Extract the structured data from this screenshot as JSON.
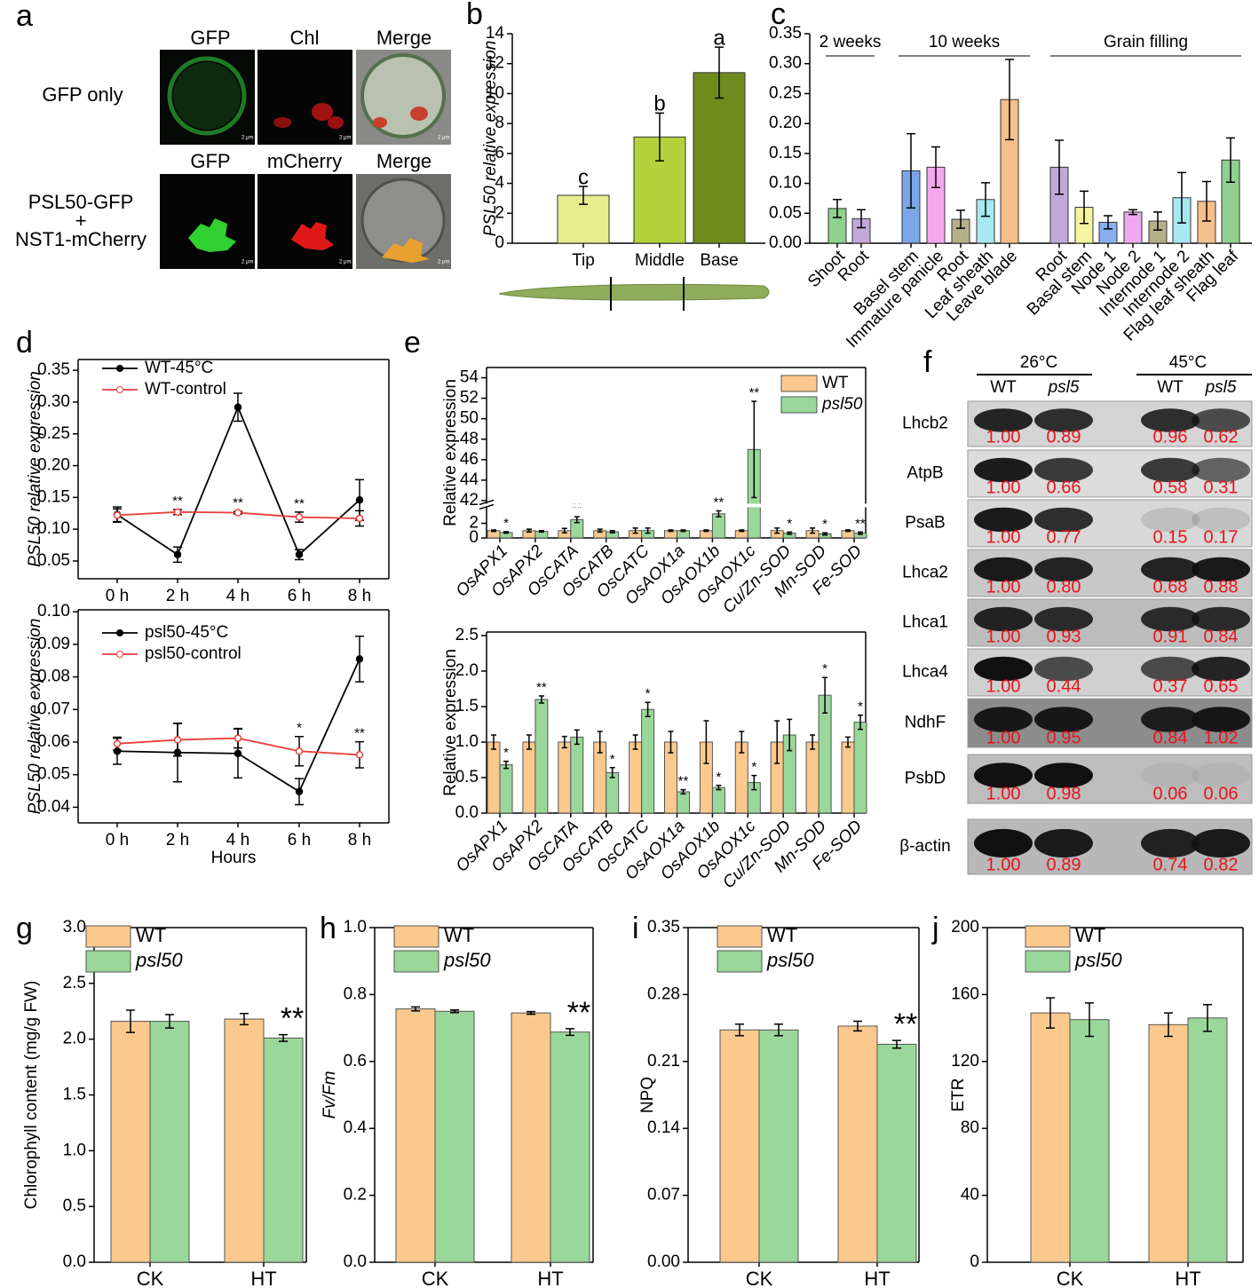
{
  "panel_a": {
    "panel": "a",
    "scale_bar": "2 μm",
    "row1": {
      "label": "GFP only",
      "columns": [
        "GFP",
        "Chl",
        "Merge"
      ]
    },
    "row2": {
      "label_lines": [
        "PSL50-GFP",
        "+",
        "NST1-mCherry"
      ],
      "columns": [
        "GFP",
        "mCherry",
        "Merge"
      ]
    }
  },
  "panel_f": {
    "panel": "f",
    "temperatures": [
      "26°C",
      "45°C"
    ],
    "genotypes": [
      "WT",
      "psl5",
      "WT",
      "psl5"
    ],
    "rows": [
      {
        "label": "Lhcb2",
        "values": [
          "1.00",
          "0.89",
          "0.96",
          "0.62"
        ]
      },
      {
        "label": "AtpB",
        "values": [
          "1.00",
          "0.66",
          "0.58",
          "0.31"
        ]
      },
      {
        "label": "PsaB",
        "values": [
          "1.00",
          "0.77",
          "0.15",
          "0.17"
        ]
      },
      {
        "label": "Lhca2",
        "values": [
          "1.00",
          "0.80",
          "0.68",
          "0.88"
        ]
      },
      {
        "label": "Lhca1",
        "values": [
          "1.00",
          "0.93",
          "0.91",
          "0.84"
        ]
      },
      {
        "label": "Lhca4",
        "values": [
          "1.00",
          "0.44",
          "0.37",
          "0.65"
        ]
      },
      {
        "label": "NdhF",
        "values": [
          "1.00",
          "0.95",
          "0.84",
          "1.02"
        ]
      },
      {
        "label": "PsbD",
        "values": [
          "1.00",
          "0.98",
          "0.06",
          "0.06"
        ]
      },
      {
        "label": "β-actin",
        "values": [
          "1.00",
          "0.89",
          "0.74",
          "0.82"
        ]
      }
    ]
  },
  "chart_data": [
    {
      "panel": "b",
      "type": "bar",
      "ylabel": "PSL50 relative expression",
      "categories": [
        "Tip",
        "Middle",
        "Base"
      ],
      "values": [
        3.2,
        7.1,
        11.4
      ],
      "errors": [
        0.6,
        1.6,
        1.7
      ],
      "annotations": [
        "c",
        "b",
        "a"
      ],
      "colors": [
        "#e8ec8c",
        "#b4d23c",
        "#6e8c1e"
      ],
      "ylim": [
        0,
        14
      ],
      "yticks": [
        0,
        2,
        4,
        6,
        8,
        10,
        12,
        14
      ]
    },
    {
      "panel": "c",
      "type": "bar",
      "groups": [
        "2 weeks",
        "10 weeks",
        "Grain filling"
      ],
      "categories": [
        "Shoot",
        "Root",
        "Basel stem",
        "Immature panicle",
        "Root",
        "Leaf sheath",
        "Leave blade",
        "Root",
        "Basal stem",
        "Node 1",
        "Node 2",
        "Internode 1",
        "Internode 2",
        "Flag leaf sheath",
        "Flag leaf"
      ],
      "values": [
        0.058,
        0.041,
        0.121,
        0.127,
        0.04,
        0.073,
        0.24,
        0.127,
        0.06,
        0.035,
        0.052,
        0.037,
        0.076,
        0.07,
        0.139
      ],
      "errors": [
        0.015,
        0.015,
        0.062,
        0.034,
        0.015,
        0.028,
        0.067,
        0.045,
        0.027,
        0.011,
        0.004,
        0.015,
        0.042,
        0.033,
        0.037
      ],
      "colors": [
        "#8fd08f",
        "#c0a8d8",
        "#7aa6e8",
        "#f5a8f0",
        "#b5b08a",
        "#a8e8f0",
        "#f5c08a",
        "#c0a8d8",
        "#f5f5a0",
        "#8aaef0",
        "#f0a8f0",
        "#b5b08a",
        "#a8e8f0",
        "#f5c08a",
        "#8fd08f"
      ],
      "ylim": [
        0,
        0.35
      ],
      "yticks": [
        {
          "value": 0,
          "label": "0.00"
        },
        0.05,
        {
          "value": 0.1,
          "label": "0.10"
        },
        0.15,
        {
          "value": 0.2,
          "label": "0.20"
        },
        0.25,
        {
          "value": 0.3,
          "label": "0.30"
        },
        0.35
      ]
    },
    {
      "panel": "d",
      "type": "line",
      "ylabel": "PSL50 relative expression",
      "categories": [
        "0 h",
        "2 h",
        "4 h",
        "6 h",
        "8 h"
      ],
      "series": [
        {
          "name": "WT-45°C",
          "color": "#000000",
          "values": [
            0.123,
            0.06,
            0.292,
            0.06,
            0.146
          ],
          "errors": [
            0.012,
            0.012,
            0.022,
            0.008,
            0.032
          ]
        },
        {
          "name": "WT-control",
          "color": "#e8403a",
          "values": [
            0.122,
            0.127,
            0.126,
            0.119,
            0.117
          ],
          "errors": [
            0.01,
            0.004,
            0.002,
            0.008,
            0.012
          ]
        }
      ],
      "annotations": [
        null,
        "**",
        "**",
        "**",
        null
      ],
      "ylim": [
        0.022,
        0.367
      ],
      "yticks": [
        0.05,
        {
          "value": 0.1,
          "label": "0.10"
        },
        0.15,
        {
          "value": 0.2,
          "label": "0.20"
        },
        0.25,
        {
          "value": 0.3,
          "label": "0.30"
        },
        0.35
      ]
    },
    {
      "type": "line",
      "ylabel": "PSL50 relative expression",
      "xlabel": "Hours",
      "categories": [
        "0 h",
        "2 h",
        "4 h",
        "6 h",
        "8 h"
      ],
      "series": [
        {
          "name": "psl50-45°C",
          "color": "#000000",
          "values": [
            0.0572,
            0.0568,
            0.0565,
            0.0448,
            0.0855
          ],
          "errors": [
            0.004,
            0.009,
            0.0075,
            0.004,
            0.007
          ]
        },
        {
          "name": "psl50-control",
          "color": "#e8403a",
          "values": [
            0.0595,
            0.0607,
            0.0612,
            0.0572,
            0.0561
          ],
          "errors": [
            0.002,
            0.005,
            0.003,
            0.0045,
            0.004
          ]
        }
      ],
      "annotations": [
        null,
        null,
        null,
        "*",
        "**"
      ],
      "ylim": [
        0.0352,
        0.1006
      ],
      "yticks": [
        0.04,
        0.05,
        0.06,
        0.07,
        0.08,
        0.09,
        {
          "value": 0.1,
          "label": "0.10"
        }
      ]
    },
    {
      "panel": "e",
      "type": "bar",
      "ylabel": "Relative expression",
      "categories": [
        "OsAPX1",
        "OsAPX2",
        "OsCATA",
        "OsCATB",
        "OsCATC",
        "OsAOX1a",
        "OsAOX1b",
        "OsAOX1c",
        "Cu/Zn-SOD",
        "Mn-SOD",
        "Fe-SOD"
      ],
      "series": [
        {
          "name": "WT",
          "color": "#fbc98e",
          "values": [
            1,
            1,
            1,
            1,
            1,
            1,
            1,
            1,
            1,
            1,
            1
          ],
          "errors": [
            0.1,
            0.2,
            0.3,
            0.2,
            0.35,
            0.1,
            0.1,
            0.1,
            0.35,
            0.35,
            0.1
          ]
        },
        {
          "name": "psl50",
          "color": "#9ad79a",
          "values": [
            0.75,
            0.9,
            2.5,
            0.85,
            1.0,
            1.0,
            3.3,
            47,
            0.65,
            0.55,
            0.65
          ],
          "errors": [
            0.1,
            0.1,
            0.4,
            0.15,
            0.35,
            0.1,
            0.4,
            4.7,
            0.15,
            0.15,
            0.15
          ]
        }
      ],
      "annotations": [
        "*",
        null,
        "**",
        null,
        null,
        null,
        "**",
        "**",
        "*",
        "*",
        "**"
      ],
      "ylim": [
        0,
        55
      ],
      "ybreak": [
        4.2,
        41.7
      ],
      "yticks": [
        0,
        2,
        42,
        44,
        46,
        48,
        50,
        52,
        54
      ]
    },
    {
      "type": "bar",
      "ylabel": "Relative expression",
      "categories": [
        "OsAPX1",
        "OsAPX2",
        "OsCATA",
        "OsCATB",
        "OsCATC",
        "OsAOX1a",
        "OsAOX1b",
        "OsAOX1c",
        "Cu/Zn-SOD",
        "Mn-SOD",
        "Fe-SOD"
      ],
      "series": [
        {
          "name": "WT",
          "color": "#fbc98e",
          "values": [
            1,
            1,
            1,
            1,
            1,
            1,
            1,
            1,
            1,
            1,
            1
          ],
          "errors": [
            0.1,
            0.1,
            0.08,
            0.15,
            0.1,
            0.15,
            0.3,
            0.15,
            0.3,
            0.1,
            0.07
          ]
        },
        {
          "name": "psl50",
          "color": "#9ad79a",
          "values": [
            0.68,
            1.6,
            1.07,
            0.57,
            1.46,
            0.3,
            0.36,
            0.43,
            1.1,
            1.66,
            1.28
          ],
          "errors": [
            0.05,
            0.05,
            0.1,
            0.07,
            0.1,
            0.03,
            0.03,
            0.1,
            0.22,
            0.25,
            0.1
          ]
        }
      ],
      "annotations": [
        "*",
        "**",
        null,
        "*",
        "*",
        "**",
        "*",
        "*",
        null,
        "*",
        "*"
      ],
      "ylim": [
        0,
        2.55
      ],
      "yticks": [
        {
          "value": 0,
          "label": "0.0"
        },
        0.5,
        {
          "value": 1,
          "label": "1.0"
        },
        1.5,
        {
          "value": 2,
          "label": "2.0"
        },
        2.5
      ]
    },
    {
      "panel": "g",
      "type": "bar",
      "ylabel": "Chlorophyll content (mg/g FW)",
      "categories": [
        "CK",
        "HT"
      ],
      "series": [
        {
          "name": "WT",
          "color": "#fbc98e",
          "values": [
            2.16,
            2.18
          ],
          "errors": [
            0.1,
            0.05
          ]
        },
        {
          "name": "psl50",
          "color": "#9ad79a",
          "values": [
            2.16,
            2.01
          ],
          "errors": [
            0.06,
            0.03
          ]
        }
      ],
      "annotations": [
        null,
        "**"
      ],
      "ylim": [
        0,
        3
      ],
      "yticks": [
        {
          "value": 0,
          "label": "0.0"
        },
        0.5,
        {
          "value": 1,
          "label": "1.0"
        },
        1.5,
        {
          "value": 2,
          "label": "2.0"
        },
        2.5,
        {
          "value": 3,
          "label": "3.0"
        }
      ]
    },
    {
      "panel": "h",
      "type": "bar",
      "ylabel": "Fv/Fm",
      "categories": [
        "CK",
        "HT"
      ],
      "series": [
        {
          "name": "WT",
          "color": "#fbc98e",
          "values": [
            0.757,
            0.745
          ],
          "errors": [
            0.006,
            0.004
          ]
        },
        {
          "name": "psl50",
          "color": "#9ad79a",
          "values": [
            0.75,
            0.688
          ],
          "errors": [
            0.004,
            0.01
          ]
        }
      ],
      "annotations": [
        null,
        "**"
      ],
      "ylim": [
        0,
        1
      ],
      "yticks": [
        {
          "value": 0,
          "label": "0.0"
        },
        0.2,
        0.4,
        0.6,
        0.8,
        {
          "value": 1,
          "label": "1.0"
        }
      ]
    },
    {
      "panel": "i",
      "type": "bar",
      "ylabel": "NPQ",
      "categories": [
        "CK",
        "HT"
      ],
      "series": [
        {
          "name": "WT",
          "color": "#fbc98e",
          "values": [
            0.243,
            0.247
          ],
          "errors": [
            0.006,
            0.005
          ]
        },
        {
          "name": "psl50",
          "color": "#9ad79a",
          "values": [
            0.243,
            0.228
          ],
          "errors": [
            0.006,
            0.004
          ]
        }
      ],
      "annotations": [
        null,
        "**"
      ],
      "ylim": [
        0,
        0.35
      ],
      "yticks": [
        {
          "value": 0,
          "label": "0.00"
        },
        0.07,
        0.14,
        0.21,
        0.28,
        0.35
      ]
    },
    {
      "panel": "j",
      "type": "bar",
      "ylabel": "ETR",
      "categories": [
        "CK",
        "HT"
      ],
      "series": [
        {
          "name": "WT",
          "color": "#fbc98e",
          "values": [
            149,
            142
          ],
          "errors": [
            9,
            7
          ]
        },
        {
          "name": "psl50",
          "color": "#9ad79a",
          "values": [
            145,
            146
          ],
          "errors": [
            10,
            8
          ]
        }
      ],
      "ylim": [
        0,
        200
      ],
      "yticks": [
        0,
        40,
        80,
        120,
        160,
        200
      ]
    }
  ]
}
